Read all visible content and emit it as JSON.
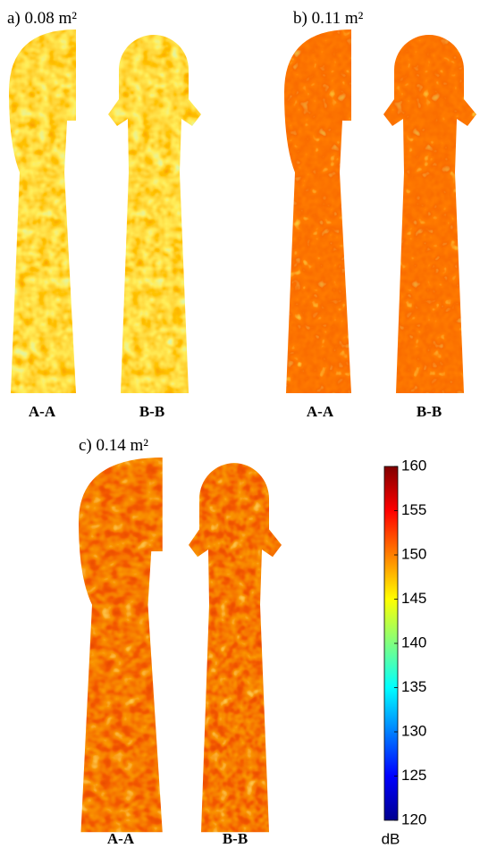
{
  "panels": [
    {
      "label": "a) 0.08 m²",
      "sections": [
        "A-A",
        "B-B"
      ]
    },
    {
      "label": "b) 0.11 m²",
      "sections": [
        "A-A",
        "B-B"
      ]
    },
    {
      "label": "c) 0.14 m²",
      "sections": [
        "A-A",
        "B-B"
      ]
    }
  ],
  "colorbar": {
    "title": "dB",
    "lim": [
      120,
      160
    ],
    "ticks": [
      120,
      125,
      130,
      135,
      140,
      145,
      150,
      155,
      160
    ]
  }
}
